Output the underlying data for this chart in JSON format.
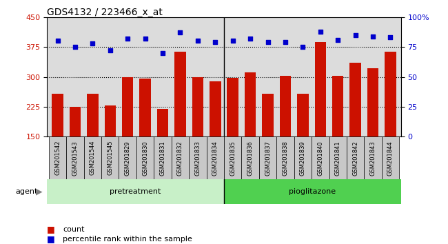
{
  "title": "GDS4132 / 223466_x_at",
  "categories": [
    "GSM201542",
    "GSM201543",
    "GSM201544",
    "GSM201545",
    "GSM201829",
    "GSM201830",
    "GSM201831",
    "GSM201832",
    "GSM201833",
    "GSM201834",
    "GSM201835",
    "GSM201836",
    "GSM201837",
    "GSM201838",
    "GSM201839",
    "GSM201840",
    "GSM201841",
    "GSM201842",
    "GSM201843",
    "GSM201844"
  ],
  "bar_values": [
    258,
    224,
    258,
    228,
    300,
    296,
    220,
    363,
    300,
    288,
    298,
    312,
    258,
    303,
    257,
    388,
    303,
    335,
    322,
    363
  ],
  "scatter_values": [
    80,
    75,
    78,
    72,
    82,
    82,
    70,
    87,
    80,
    79,
    80,
    82,
    79,
    79,
    75,
    88,
    81,
    85,
    84,
    83
  ],
  "bar_color": "#CC1100",
  "scatter_color": "#0000CC",
  "ylim_left": [
    150,
    450
  ],
  "ylim_right": [
    0,
    100
  ],
  "yticks_left": [
    150,
    225,
    300,
    375,
    450
  ],
  "yticks_right": [
    0,
    25,
    50,
    75,
    100
  ],
  "ytick_labels_right": [
    "0",
    "25",
    "50",
    "75",
    "100%"
  ],
  "grid_values": [
    225,
    300,
    375
  ],
  "n_pretreatment": 10,
  "n_pioglitazone": 10,
  "pretreatment_label": "pretreatment",
  "pioglitazone_label": "pioglitazone",
  "agent_label": "agent",
  "legend_count": "count",
  "legend_pct": "percentile rank within the sample",
  "plot_bg_color": "#DCDCDC",
  "xtick_bg_color": "#C8C8C8",
  "green_pretreatment": "#C8F0C8",
  "green_pioglitazone": "#50D050",
  "white": "#FFFFFF"
}
